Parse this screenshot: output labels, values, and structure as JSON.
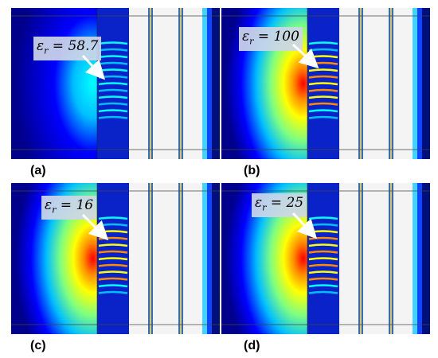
{
  "panels": [
    {
      "label": "(a)",
      "eps_symbol": "ε",
      "eps_subscript": "r",
      "eps_value": "58.7",
      "hotspot": 0.35
    },
    {
      "label": "(b)",
      "eps_symbol": "ε",
      "eps_subscript": "r",
      "eps_value": "100",
      "hotspot": 1.0
    },
    {
      "label": "(c)",
      "eps_symbol": "ε",
      "eps_subscript": "r",
      "eps_value": "16",
      "hotspot": 0.95
    },
    {
      "label": "(d)",
      "eps_symbol": "ε",
      "eps_subscript": "r",
      "eps_value": "25",
      "hotspot": 0.9
    }
  ],
  "colormap": [
    "#00008b",
    "#0000ff",
    "#00bfff",
    "#00ffff",
    "#7fff7f",
    "#ffff00",
    "#ff8c00",
    "#ff0000",
    "#8b0000"
  ]
}
